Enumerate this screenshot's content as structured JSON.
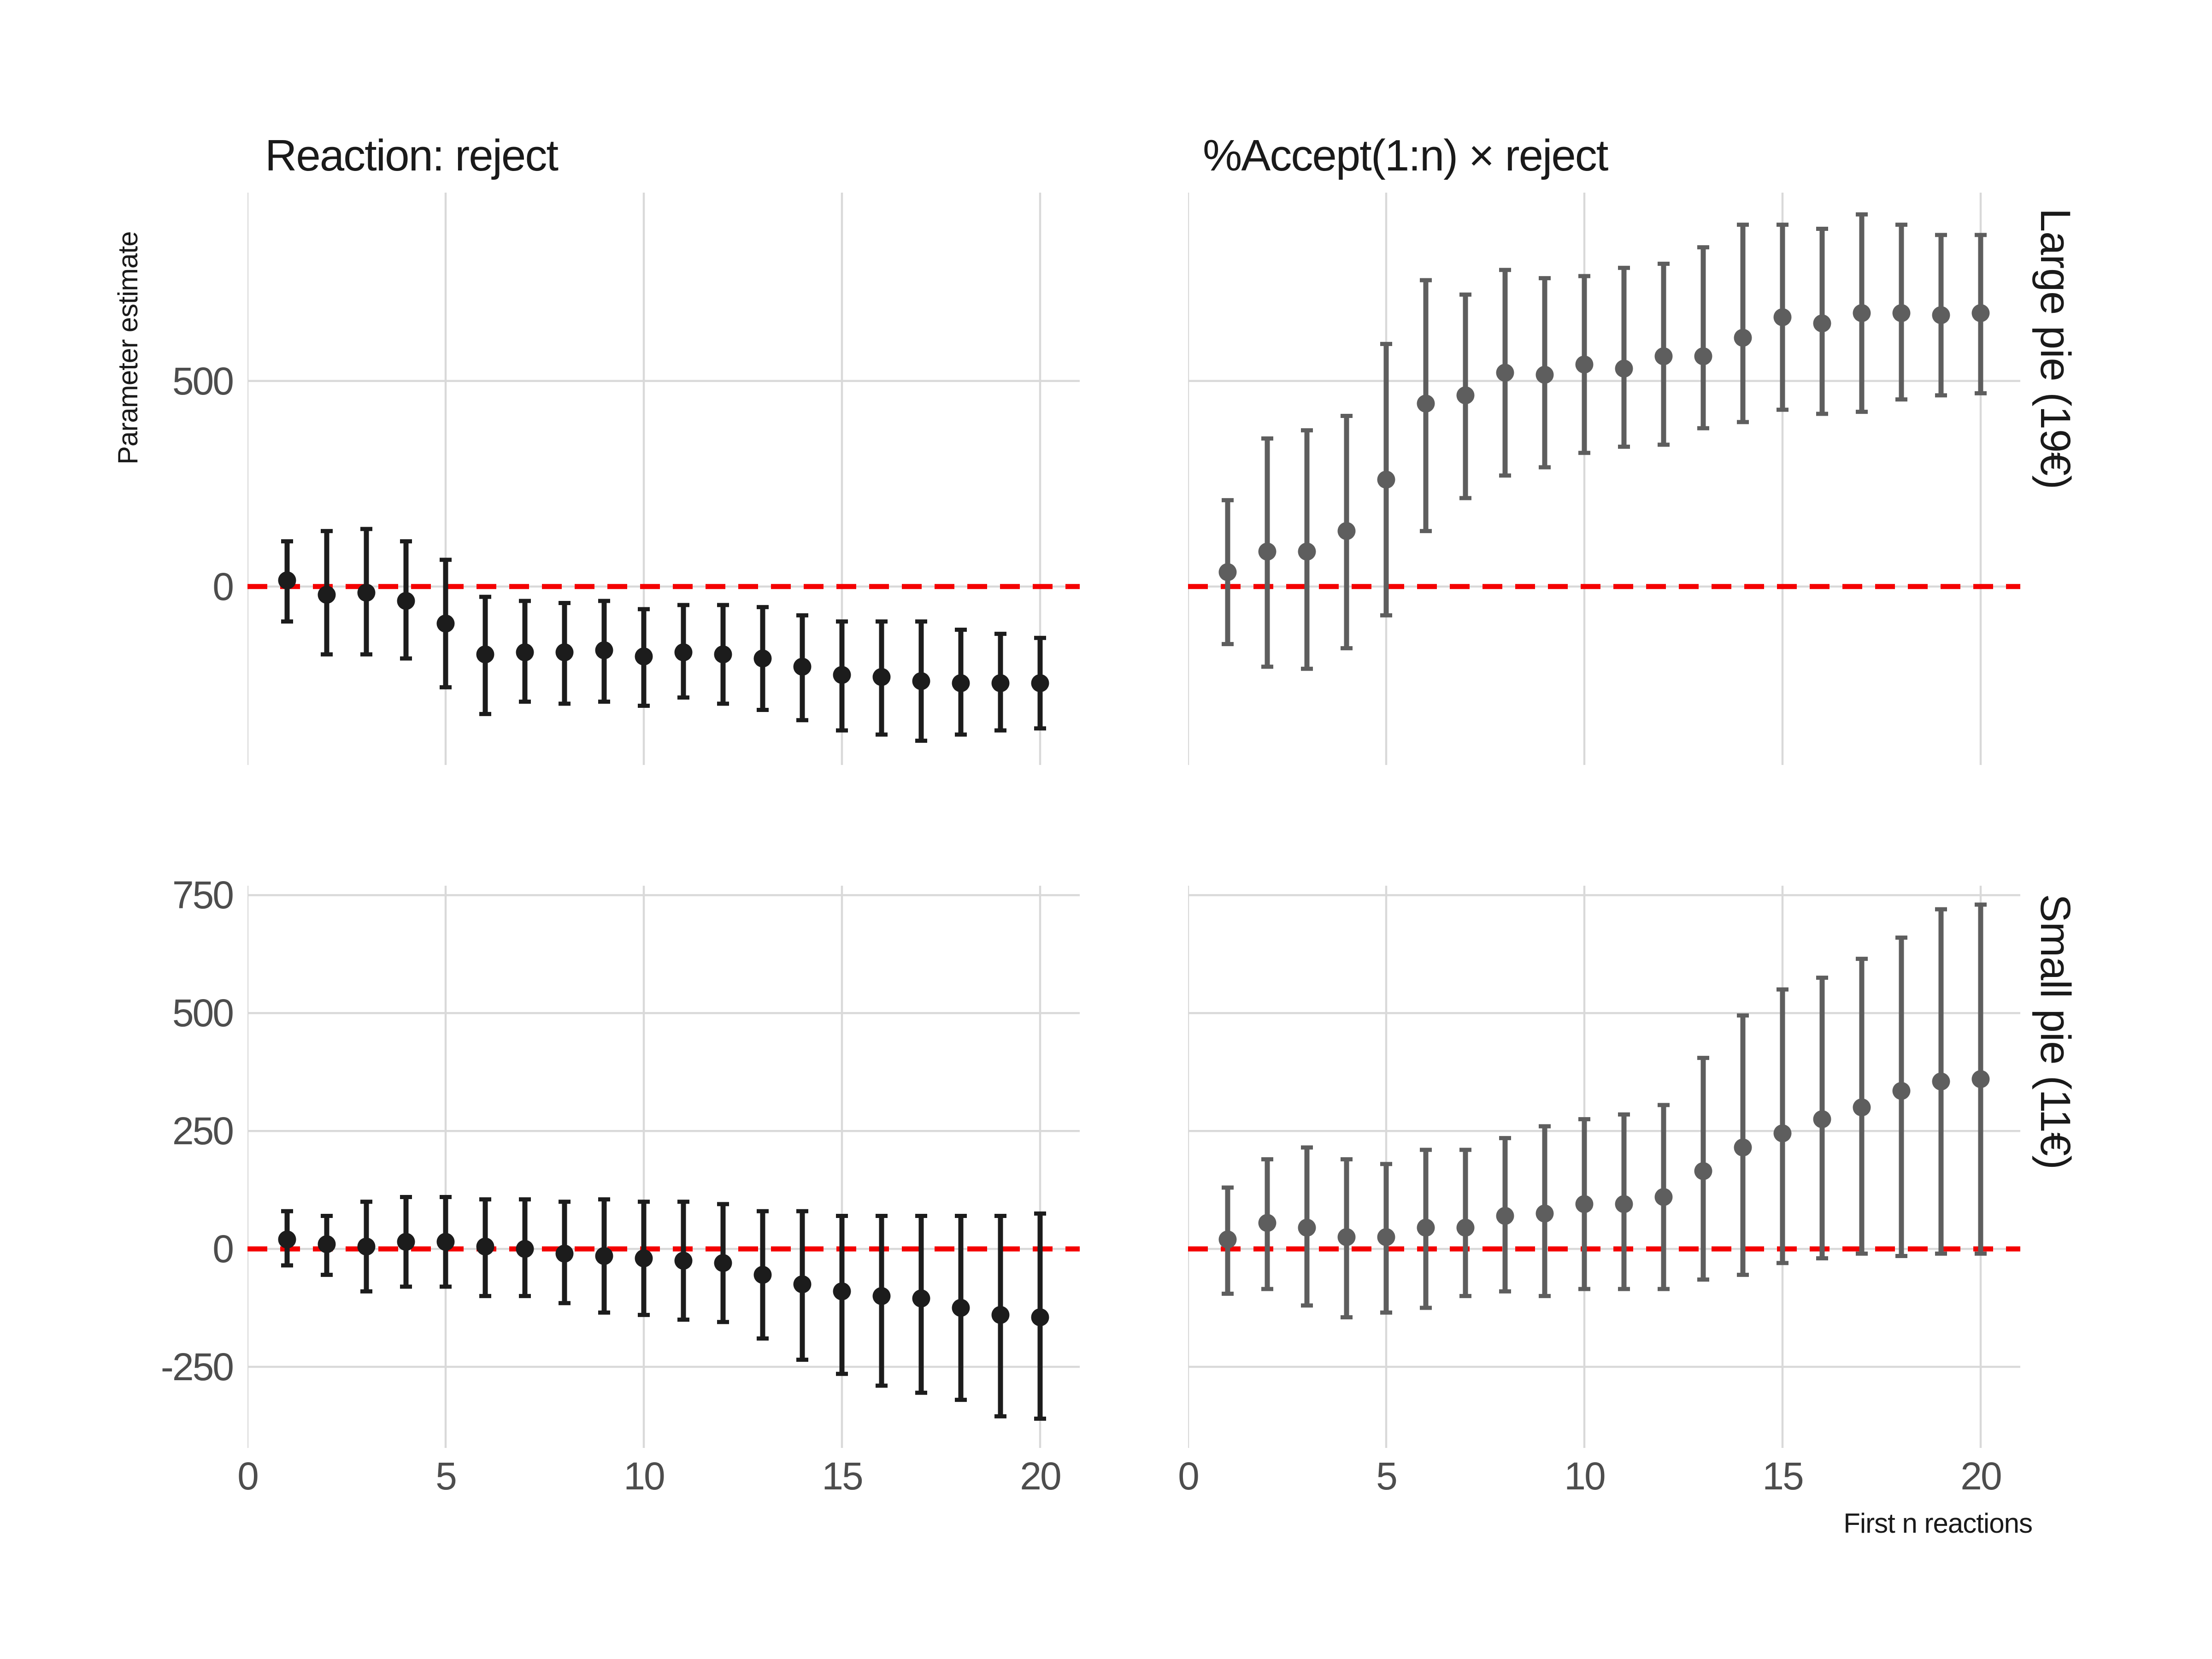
{
  "header": {
    "left_title": "Reaction: reject",
    "right_title": "%Accept(1:n) × reject"
  },
  "axes": {
    "y_label": "Parameter estimate",
    "x_label": "First n reactions"
  },
  "strips": {
    "top": "Large pie (19€)",
    "bottom": "Small pie (11€)"
  },
  "colors": {
    "background": "#ffffff",
    "grid": "#d9d9d9",
    "tick_text": "#4d4d4d",
    "label_text": "#1a1a1a",
    "reference_line": "#f40000",
    "point_left_column": "#1c1c1c",
    "point_right_column": "#5e5e5e"
  },
  "chart_data": [
    {
      "id": "reject-large-pie",
      "type": "pointrange",
      "title": "Reaction: reject",
      "facet_row": "Large pie (19€)",
      "position": "top-left",
      "color": "#1c1c1c",
      "x_domain": [
        0,
        21
      ],
      "x_ticks": [
        0,
        5,
        10,
        15,
        20
      ],
      "show_x_tick_labels": false,
      "y_domain": [
        -434,
        958
      ],
      "y_ticks": [
        500,
        0
      ],
      "show_y_tick_labels": true,
      "ref_line_y": 0,
      "grid": true,
      "x": [
        1,
        2,
        3,
        4,
        5,
        6,
        7,
        8,
        9,
        10,
        11,
        12,
        13,
        14,
        15,
        16,
        17,
        18,
        19,
        20
      ],
      "estimate": [
        15,
        -20,
        -15,
        -35,
        -90,
        -165,
        -160,
        -160,
        -155,
        -170,
        -160,
        -165,
        -175,
        -195,
        -215,
        -220,
        -230,
        -235,
        -235,
        -235
      ],
      "ci_high": [
        110,
        135,
        140,
        110,
        65,
        -25,
        -35,
        -40,
        -35,
        -55,
        -45,
        -45,
        -50,
        -70,
        -85,
        -85,
        -85,
        -105,
        -115,
        -125
      ],
      "ci_low": [
        -85,
        -165,
        -165,
        -175,
        -245,
        -310,
        -280,
        -285,
        -280,
        -290,
        -270,
        -285,
        -300,
        -325,
        -350,
        -360,
        -375,
        -360,
        -350,
        -345
      ]
    },
    {
      "id": "accept-interaction-large-pie",
      "type": "pointrange",
      "title": "%Accept(1:n) × reject",
      "facet_row": "Large pie (19€)",
      "position": "top-right",
      "color": "#5e5e5e",
      "x_domain": [
        0,
        21
      ],
      "x_ticks": [
        0,
        5,
        10,
        15,
        20
      ],
      "show_x_tick_labels": false,
      "y_domain": [
        -434,
        958
      ],
      "y_ticks": [
        500,
        0
      ],
      "show_y_tick_labels": false,
      "ref_line_y": 0,
      "grid": true,
      "x": [
        1,
        2,
        3,
        4,
        5,
        6,
        7,
        8,
        9,
        10,
        11,
        12,
        13,
        14,
        15,
        16,
        17,
        18,
        19,
        20
      ],
      "estimate": [
        35,
        85,
        85,
        135,
        260,
        445,
        465,
        520,
        515,
        540,
        530,
        560,
        560,
        605,
        655,
        640,
        665,
        665,
        660,
        665
      ],
      "ci_high": [
        210,
        360,
        380,
        415,
        590,
        745,
        710,
        770,
        750,
        755,
        775,
        785,
        825,
        880,
        880,
        870,
        905,
        880,
        855,
        855
      ],
      "ci_low": [
        -140,
        -195,
        -200,
        -150,
        -70,
        135,
        215,
        270,
        290,
        325,
        340,
        345,
        385,
        400,
        430,
        420,
        425,
        455,
        465,
        470
      ]
    },
    {
      "id": "reject-small-pie",
      "type": "pointrange",
      "title": "Reaction: reject",
      "facet_row": "Small pie (11€)",
      "position": "bottom-left",
      "color": "#1c1c1c",
      "x_domain": [
        0,
        21
      ],
      "x_ticks": [
        0,
        5,
        10,
        15,
        20
      ],
      "show_x_tick_labels": true,
      "y_domain": [
        -422,
        770
      ],
      "y_ticks": [
        750,
        500,
        250,
        0,
        -250
      ],
      "show_y_tick_labels": true,
      "ref_line_y": 0,
      "grid": true,
      "x": [
        1,
        2,
        3,
        4,
        5,
        6,
        7,
        8,
        9,
        10,
        11,
        12,
        13,
        14,
        15,
        16,
        17,
        18,
        19,
        20
      ],
      "estimate": [
        20,
        10,
        5,
        15,
        15,
        5,
        0,
        -10,
        -15,
        -20,
        -25,
        -30,
        -55,
        -75,
        -90,
        -100,
        -105,
        -125,
        -140,
        -145
      ],
      "ci_high": [
        80,
        70,
        100,
        110,
        110,
        105,
        105,
        100,
        105,
        100,
        100,
        95,
        80,
        80,
        70,
        70,
        70,
        70,
        70,
        75
      ],
      "ci_low": [
        -35,
        -55,
        -90,
        -80,
        -80,
        -100,
        -100,
        -115,
        -135,
        -140,
        -150,
        -155,
        -190,
        -235,
        -265,
        -290,
        -305,
        -320,
        -355,
        -360
      ]
    },
    {
      "id": "accept-interaction-small-pie",
      "type": "pointrange",
      "title": "%Accept(1:n) × reject",
      "facet_row": "Small pie (11€)",
      "position": "bottom-right",
      "color": "#5e5e5e",
      "x_domain": [
        0,
        21
      ],
      "x_ticks": [
        0,
        5,
        10,
        15,
        20
      ],
      "show_x_tick_labels": true,
      "y_domain": [
        -422,
        770
      ],
      "y_ticks": [
        750,
        500,
        250,
        0,
        -250
      ],
      "show_y_tick_labels": false,
      "ref_line_y": 0,
      "grid": true,
      "x": [
        1,
        2,
        3,
        4,
        5,
        6,
        7,
        8,
        9,
        10,
        11,
        12,
        13,
        14,
        15,
        16,
        17,
        18,
        19,
        20
      ],
      "estimate": [
        20,
        55,
        45,
        25,
        25,
        45,
        45,
        70,
        75,
        95,
        95,
        110,
        165,
        215,
        245,
        275,
        300,
        335,
        355,
        360
      ],
      "ci_high": [
        130,
        190,
        215,
        190,
        180,
        210,
        210,
        235,
        260,
        275,
        285,
        305,
        405,
        495,
        550,
        575,
        615,
        660,
        720,
        730
      ],
      "ci_low": [
        -95,
        -85,
        -120,
        -145,
        -135,
        -125,
        -100,
        -90,
        -100,
        -85,
        -85,
        -85,
        -65,
        -55,
        -30,
        -20,
        -10,
        -15,
        -10,
        -10
      ]
    }
  ]
}
